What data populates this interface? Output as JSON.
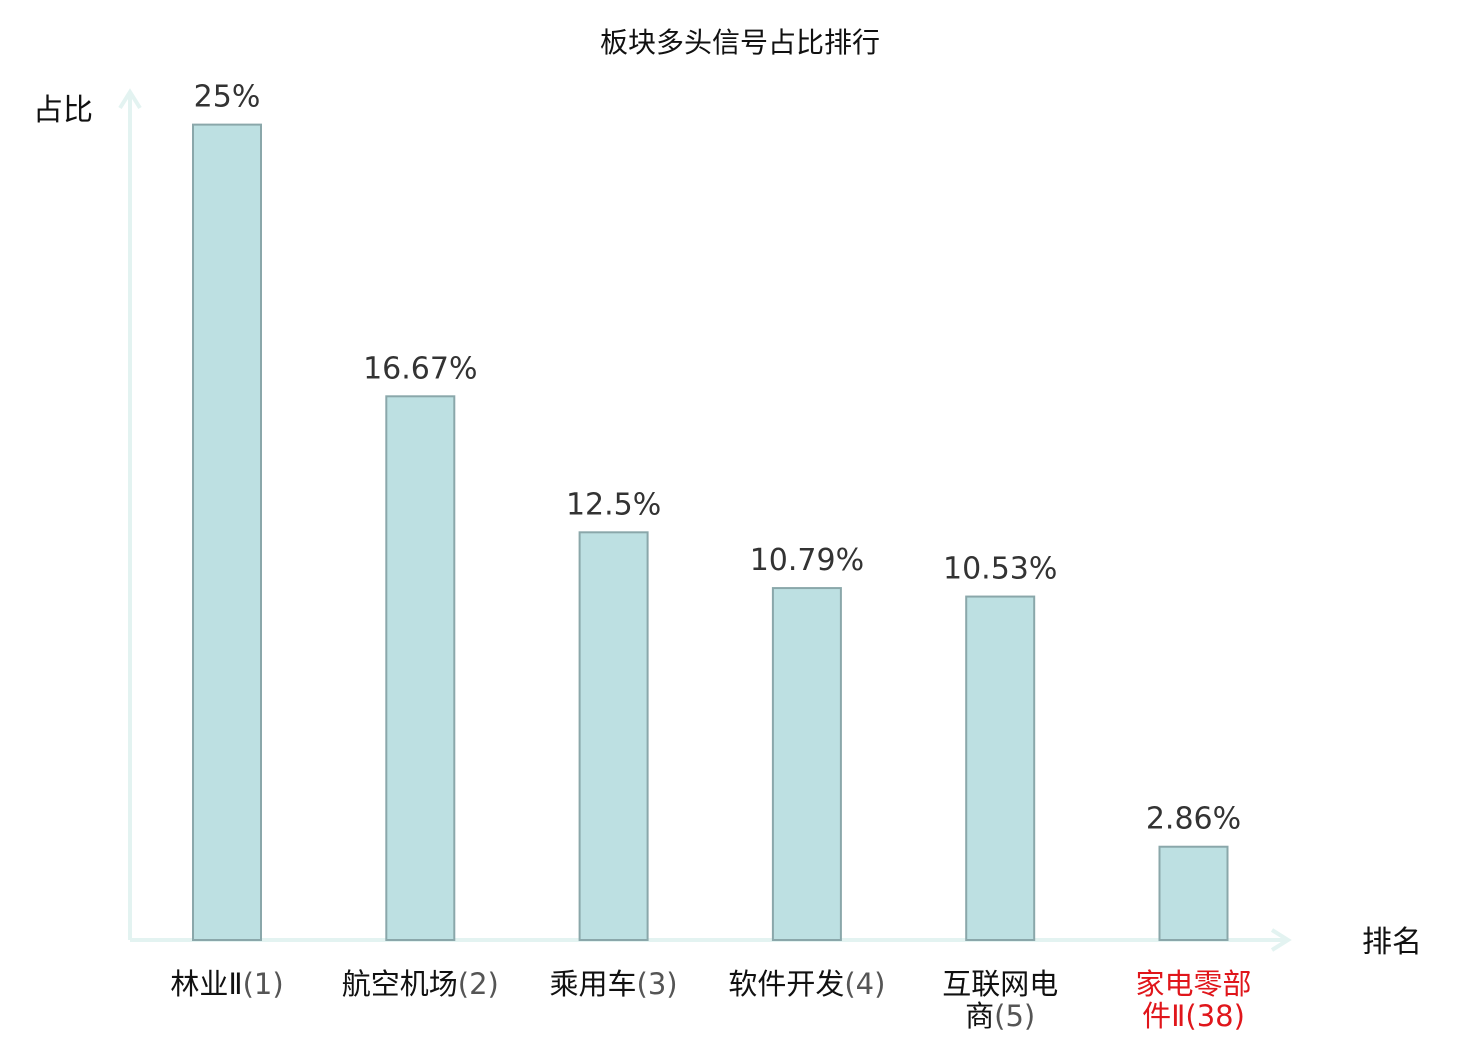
{
  "chart_data": {
    "type": "bar",
    "title": "板块多头信号占比排行",
    "xlabel": "排名",
    "ylabel": "占比",
    "ylim": [
      0,
      26
    ],
    "grid": false,
    "categories": [
      {
        "lines": [
          {
            "name": "林业Ⅱ",
            "rank": "(1)"
          }
        ],
        "highlight": false
      },
      {
        "lines": [
          {
            "name": "航空机场",
            "rank": "(2)"
          }
        ],
        "highlight": false
      },
      {
        "lines": [
          {
            "name": "乘用车",
            "rank": "(3)"
          }
        ],
        "highlight": false
      },
      {
        "lines": [
          {
            "name": "软件开发",
            "rank": "(4)"
          }
        ],
        "highlight": false
      },
      {
        "lines": [
          {
            "name": "互联网电",
            "rank": ""
          },
          {
            "name": "商",
            "rank": "(5)"
          }
        ],
        "highlight": false
      },
      {
        "lines": [
          {
            "name": "家电零部",
            "rank": ""
          },
          {
            "name": "件Ⅱ",
            "rank": "(38)"
          }
        ],
        "highlight": true
      }
    ],
    "values": [
      25,
      16.67,
      12.5,
      10.79,
      10.53,
      2.86
    ],
    "value_labels": [
      "25%",
      "16.67%",
      "12.5%",
      "10.79%",
      "10.53%",
      "2.86%"
    ]
  },
  "colors": {
    "bar_fill": "#bde0e2",
    "bar_stroke": "#8aa7aa",
    "axis": "#e3f3f1",
    "highlight": "#e0161b",
    "text": "#111111"
  }
}
